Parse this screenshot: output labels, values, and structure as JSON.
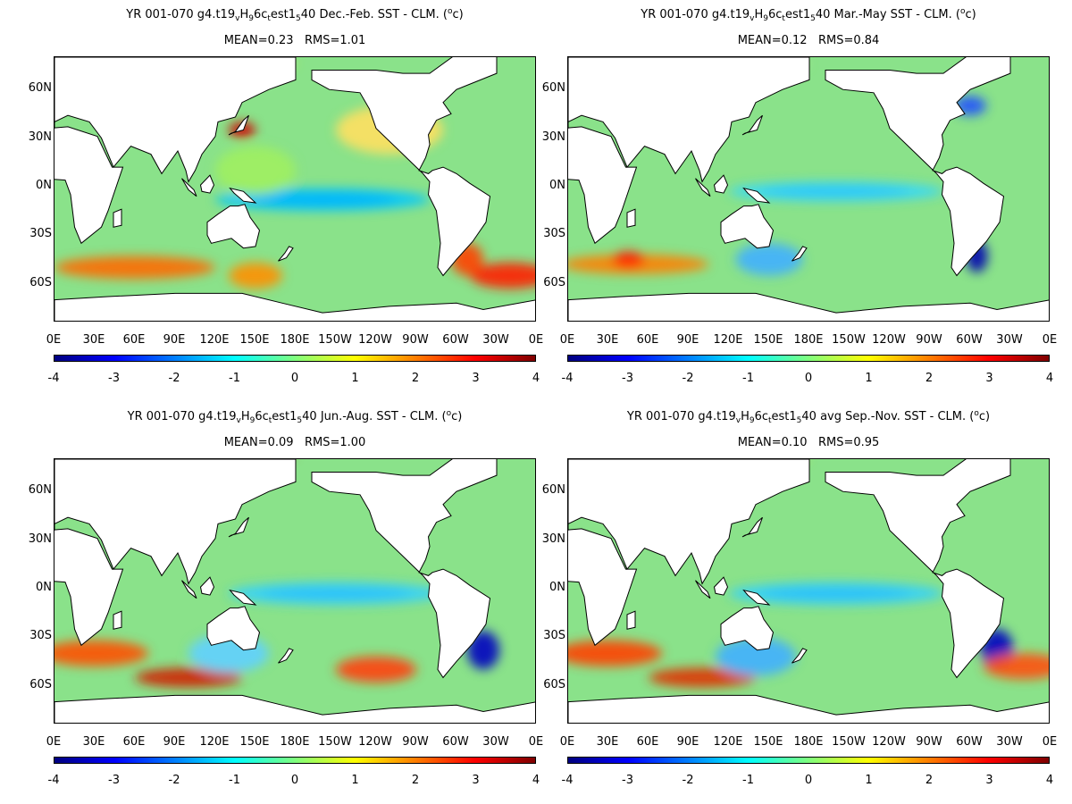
{
  "panels": [
    {
      "title_parts": [
        "YR 001-070 g4.t19",
        "v",
        "H",
        "9",
        "6c",
        "t",
        "est1",
        "5",
        "40  Dec.-Feb. SST - CLM. (",
        "o",
        "c)"
      ],
      "stats": "MEAN=0.23   RMS=1.01"
    },
    {
      "title_parts": [
        "YR 001-070 g4.t19",
        "v",
        "H",
        "9",
        "6c",
        "t",
        "est1",
        "5",
        "40 Mar.-May SST - CLM. (",
        "o",
        "c)"
      ],
      "stats": "MEAN=0.12   RMS=0.84"
    },
    {
      "title_parts": [
        "YR 001-070 g4.t19",
        "v",
        "H",
        "9",
        "6c",
        "t",
        "est1",
        "5",
        "40 Jun.-Aug. SST - CLM. (",
        "o",
        "c)"
      ],
      "stats": "MEAN=0.09   RMS=1.00"
    },
    {
      "title_parts": [
        "YR 001-070 g4.t19",
        "v",
        "H",
        "9",
        "6c",
        "t",
        "est1",
        "5",
        "40 avg Sep.-Nov. SST - CLM. (",
        "o",
        "c)"
      ],
      "stats": "MEAN=0.10   RMS=0.95"
    }
  ],
  "lat_labels": [
    "60N",
    "30N",
    "0N",
    "30S",
    "60S"
  ],
  "lon_labels": [
    "0E",
    "30E",
    "60E",
    "90E",
    "120E",
    "150E",
    "180E",
    "150W",
    "120W",
    "90W",
    "60W",
    "30W",
    "0E"
  ],
  "colorbar_labels": [
    "-4",
    "-3",
    "-2",
    "-1",
    "0",
    "1",
    "2",
    "3",
    "4"
  ],
  "colorbar_colors": [
    "#00007f",
    "#0000ff",
    "#007fff",
    "#00ffff",
    "#7fff7f",
    "#ffff00",
    "#ff7f00",
    "#ff0000",
    "#7f0000"
  ],
  "background_anomaly_color": "#8ae28a",
  "land_color": "#ffffff"
}
